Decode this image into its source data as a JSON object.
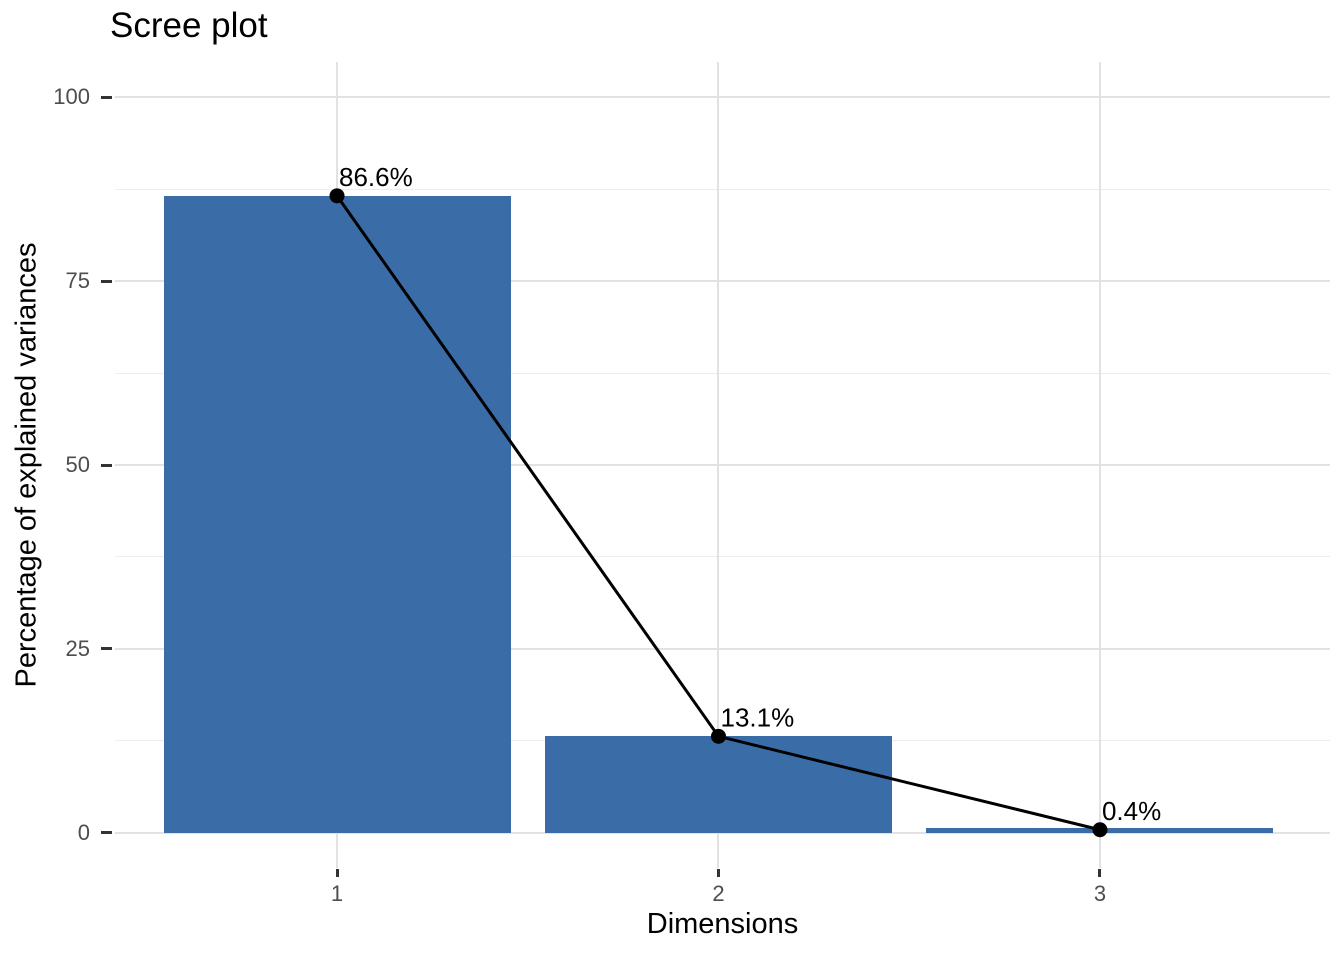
{
  "chart_data": {
    "type": "bar",
    "subtype": "scree-plot-with-line-overlay",
    "title": "Scree plot",
    "xlabel": "Dimensions",
    "ylabel": "Percentage of explained variances",
    "categories": [
      "1",
      "2",
      "3"
    ],
    "values": [
      86.6,
      13.1,
      0.4
    ],
    "point_labels": [
      "86.6%",
      "13.1%",
      "0.4%"
    ],
    "y_ticks": [
      0,
      25,
      50,
      75,
      100
    ],
    "y_tick_labels": [
      "0",
      "25",
      "50",
      "75",
      "100"
    ],
    "y_minor_ticks": [
      12.5,
      37.5,
      62.5,
      87.5
    ],
    "ylim": [
      0,
      100
    ],
    "grid": "horizontal major+minor, vertical major at category centers",
    "legend": "none",
    "colors": {
      "bar_fill": "#3A6CA8",
      "line": "#000000",
      "point": "#000000",
      "label_text": "#000000",
      "grid_major": "#E2E2E2",
      "grid_minor": "#EDEDED",
      "tick_mark": "#333333",
      "tick_label": "#4D4D4D",
      "axis_title": "#000000",
      "title": "#000000",
      "background": "#FFFFFF"
    }
  }
}
